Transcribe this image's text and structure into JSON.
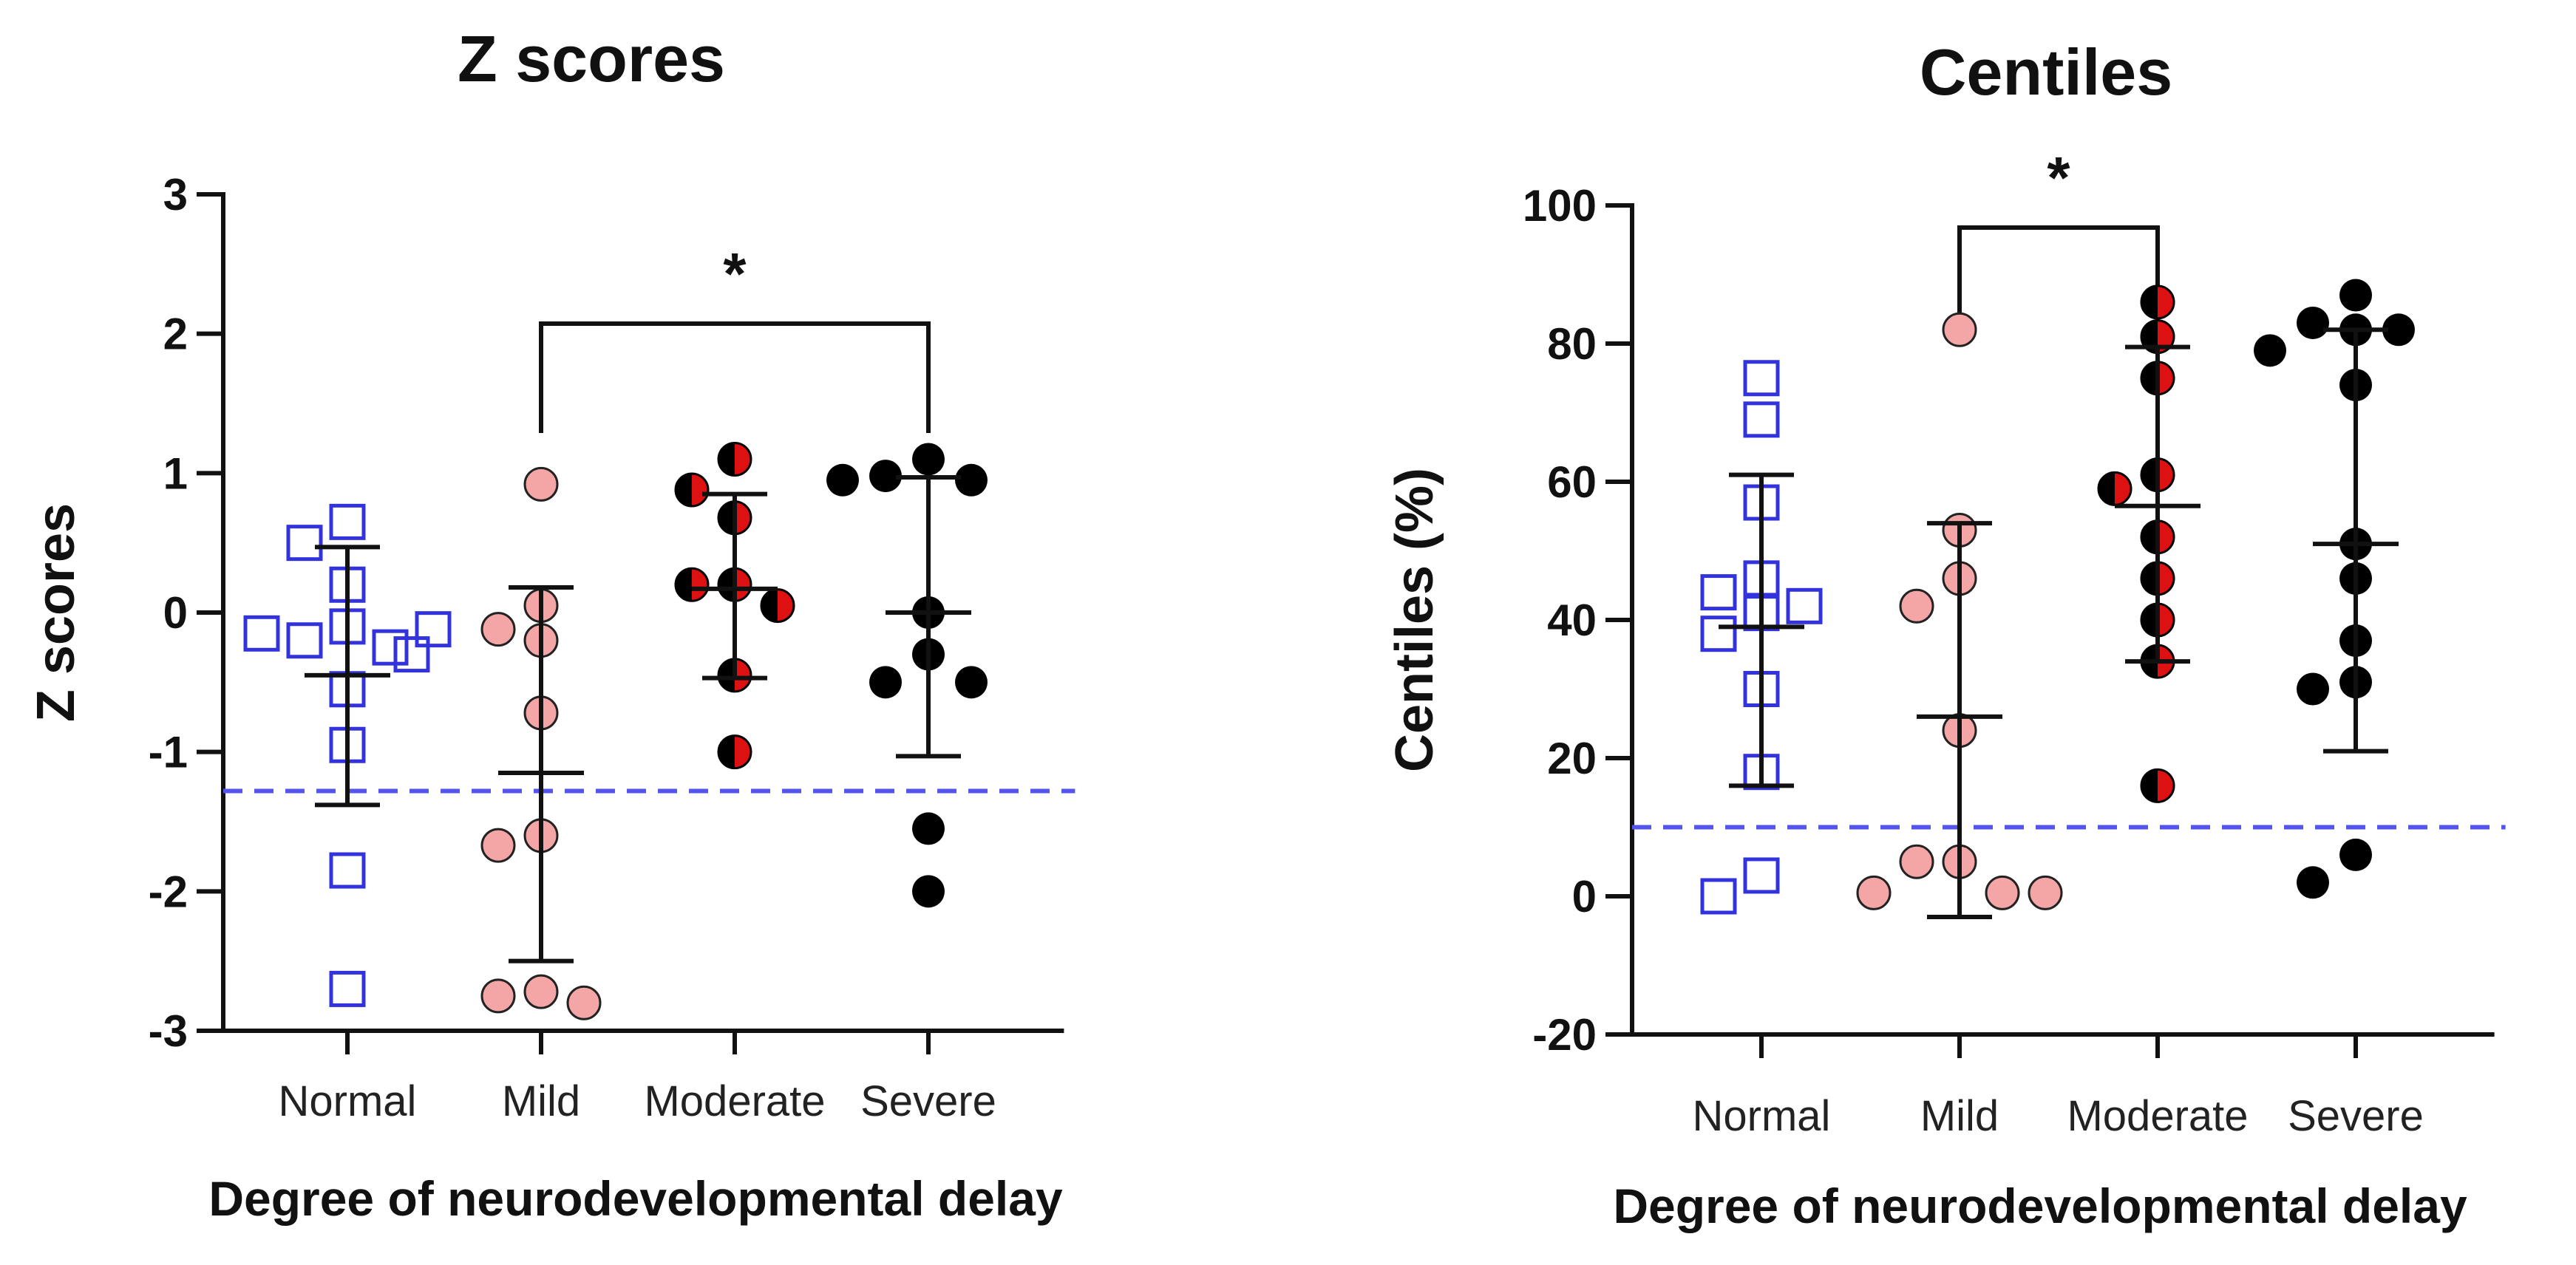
{
  "chart_data": [
    {
      "type": "scatter",
      "title": "Z scores",
      "xlabel": "Degree of neurodevelopmental delay",
      "ylabel": "Z scores",
      "ylim": [
        -3,
        3
      ],
      "yticks": [
        -3,
        -2,
        -1,
        0,
        1,
        2,
        3
      ],
      "ytick_labels": [
        "-3",
        "-2",
        "-1",
        "0",
        "1",
        "2",
        "3"
      ],
      "categories": [
        "Normal",
        "Mild",
        "Moderate",
        "Severe"
      ],
      "reference_line": -1.28,
      "significance": {
        "from": "Mild",
        "to": "Severe",
        "label": "*"
      },
      "series": [
        {
          "name": "Normal",
          "marker": "open-square",
          "color": "#3333dd",
          "values": [
            0.65,
            0.5,
            0.2,
            -0.1,
            -0.2,
            -0.25,
            -0.15,
            -0.12,
            -0.3,
            -0.55,
            -0.95,
            -1.85,
            -2.7
          ],
          "mean": -0.45,
          "err_low": -1.38,
          "err_high": 0.47
        },
        {
          "name": "Mild",
          "marker": "pink-circle",
          "color": "#f4a6a6",
          "values": [
            0.92,
            0.05,
            -0.12,
            -0.2,
            -0.72,
            -1.6,
            -1.67,
            -2.72,
            -2.75,
            -2.8
          ],
          "mean": -1.15,
          "err_low": -2.5,
          "err_high": 0.18
        },
        {
          "name": "Moderate",
          "marker": "half-red-circle",
          "color": "#dd1111",
          "values": [
            1.1,
            0.88,
            0.68,
            0.2,
            0.2,
            0.05,
            -0.45,
            -1.0
          ],
          "mean": 0.17,
          "err_low": -0.47,
          "err_high": 0.85
        },
        {
          "name": "Severe",
          "marker": "black-circle",
          "color": "#000000",
          "values": [
            1.1,
            0.98,
            0.95,
            0.95,
            0.0,
            -0.3,
            -0.5,
            -0.5,
            -1.55,
            -2.0
          ],
          "mean": 0.0,
          "err_low": -1.03,
          "err_high": 0.97
        }
      ]
    },
    {
      "type": "scatter",
      "title": "Centiles",
      "xlabel": "Degree of neurodevelopmental delay",
      "ylabel": "Centiles (%)",
      "ylim": [
        -20,
        100
      ],
      "yticks": [
        -20,
        0,
        20,
        40,
        60,
        80,
        100
      ],
      "ytick_labels": [
        "-20",
        "0",
        "20",
        "40",
        "60",
        "80",
        "100"
      ],
      "categories": [
        "Normal",
        "Mild",
        "Moderate",
        "Severe"
      ],
      "reference_line": 10,
      "significance": {
        "from": "Mild",
        "to": "Moderate",
        "label": "*"
      },
      "series": [
        {
          "name": "Normal",
          "marker": "open-square",
          "color": "#3333dd",
          "values": [
            75,
            69,
            57,
            46,
            44,
            42,
            41,
            38,
            30,
            18,
            3,
            0
          ],
          "mean": 39,
          "err_low": 16,
          "err_high": 61
        },
        {
          "name": "Mild",
          "marker": "pink-circle",
          "color": "#f4a6a6",
          "values": [
            82,
            53,
            46,
            42,
            24,
            5,
            5,
            0.5,
            0.5,
            0.5
          ],
          "mean": 26,
          "err_low": -3,
          "err_high": 54
        },
        {
          "name": "Moderate",
          "marker": "half-red-circle",
          "color": "#dd1111",
          "values": [
            86,
            81,
            75,
            61,
            59,
            52,
            46,
            40,
            34,
            16
          ],
          "mean": 56.5,
          "err_low": 34,
          "err_high": 79.5
        },
        {
          "name": "Severe",
          "marker": "black-circle",
          "color": "#000000",
          "values": [
            87,
            83,
            82,
            82,
            79,
            74,
            51,
            46,
            37,
            31,
            30,
            6,
            2
          ],
          "mean": 51,
          "err_low": 21,
          "err_high": 82
        }
      ]
    }
  ]
}
